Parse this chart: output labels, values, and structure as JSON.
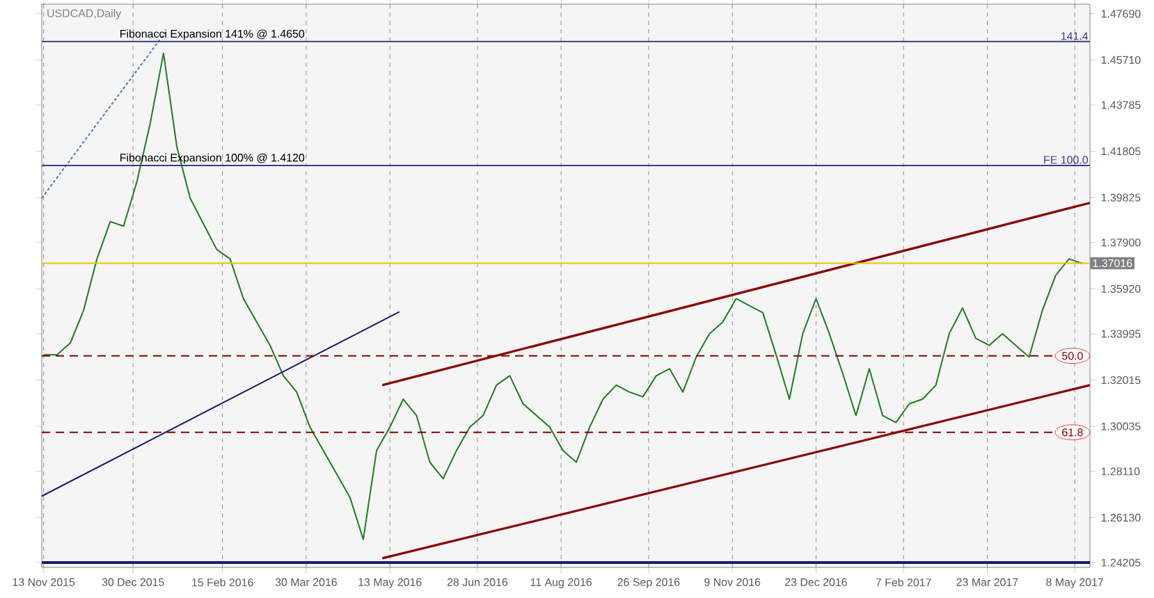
{
  "chart_data": {
    "type": "line",
    "title": "USDCAD,Daily",
    "xlim": [
      "2015-11-12",
      "2017-05-16"
    ],
    "xticks": [
      {
        "value": "2015-11-13",
        "label": "13 Nov 2015"
      },
      {
        "value": "2015-12-30",
        "label": "30 Dec 2015"
      },
      {
        "value": "2016-02-15",
        "label": "15 Feb 2016"
      },
      {
        "value": "2016-03-30",
        "label": "30 Mar 2016"
      },
      {
        "value": "2016-05-13",
        "label": "13 May 2016"
      },
      {
        "value": "2016-06-28",
        "label": "28 Jun 2016"
      },
      {
        "value": "2016-08-11",
        "label": "11 Aug 2016"
      },
      {
        "value": "2016-09-26",
        "label": "26 Sep 2016"
      },
      {
        "value": "2016-11-09",
        "label": "9 Nov 2016"
      },
      {
        "value": "2016-12-23",
        "label": "23 Dec 2016"
      },
      {
        "value": "2017-02-07",
        "label": "7 Feb 2017"
      },
      {
        "value": "2017-03-23",
        "label": "23 Mar 2017"
      },
      {
        "value": "2017-05-08",
        "label": "8 May 2017"
      }
    ],
    "ylim": [
      1.24,
      1.481
    ],
    "yticks": [
      {
        "value": 1.24205,
        "label": "1.24205"
      },
      {
        "value": 1.2613,
        "label": "1.26130"
      },
      {
        "value": 1.2811,
        "label": "1.28110"
      },
      {
        "value": 1.30035,
        "label": "1.30035"
      },
      {
        "value": 1.32015,
        "label": "1.32015"
      },
      {
        "value": 1.33995,
        "label": "1.33995"
      },
      {
        "value": 1.3592,
        "label": "1.35920"
      },
      {
        "value": 1.379,
        "label": "1.37900"
      },
      {
        "value": 1.39825,
        "label": "1.39825"
      },
      {
        "value": 1.41805,
        "label": "1.41805"
      },
      {
        "value": 1.43785,
        "label": "1.43785"
      },
      {
        "value": 1.4571,
        "label": "1.45710"
      },
      {
        "value": 1.4769,
        "label": "1.47690"
      }
    ],
    "grid": "x",
    "series": [
      {
        "color": "#1f7a1f",
        "x": [
          "2015-11-13",
          "2015-11-20",
          "2015-11-27",
          "2015-12-04",
          "2015-12-11",
          "2015-12-18",
          "2015-12-25",
          "2016-01-01",
          "2016-01-08",
          "2016-01-15",
          "2016-01-22",
          "2016-01-29",
          "2016-02-05",
          "2016-02-12",
          "2016-02-19",
          "2016-02-26",
          "2016-03-04",
          "2016-03-11",
          "2016-03-18",
          "2016-03-25",
          "2016-04-01",
          "2016-04-08",
          "2016-04-15",
          "2016-04-22",
          "2016-04-29",
          "2016-05-06",
          "2016-05-13",
          "2016-05-20",
          "2016-05-27",
          "2016-06-03",
          "2016-06-10",
          "2016-06-17",
          "2016-06-24",
          "2016-07-01",
          "2016-07-08",
          "2016-07-15",
          "2016-07-22",
          "2016-07-29",
          "2016-08-05",
          "2016-08-12",
          "2016-08-19",
          "2016-08-26",
          "2016-09-02",
          "2016-09-09",
          "2016-09-16",
          "2016-09-23",
          "2016-09-30",
          "2016-10-07",
          "2016-10-14",
          "2016-10-21",
          "2016-10-28",
          "2016-11-04",
          "2016-11-11",
          "2016-11-18",
          "2016-11-25",
          "2016-12-02",
          "2016-12-09",
          "2016-12-16",
          "2016-12-23",
          "2016-12-30",
          "2017-01-06",
          "2017-01-13",
          "2017-01-20",
          "2017-01-27",
          "2017-02-03",
          "2017-02-10",
          "2017-02-17",
          "2017-02-24",
          "2017-03-03",
          "2017-03-10",
          "2017-03-17",
          "2017-03-24",
          "2017-03-31",
          "2017-04-07",
          "2017-04-14",
          "2017-04-21",
          "2017-04-28",
          "2017-05-05",
          "2017-05-12"
        ],
        "values": [
          1.331,
          1.331,
          1.336,
          1.35,
          1.372,
          1.388,
          1.386,
          1.405,
          1.43,
          1.46,
          1.42,
          1.398,
          1.387,
          1.376,
          1.372,
          1.355,
          1.345,
          1.335,
          1.322,
          1.315,
          1.3,
          1.29,
          1.28,
          1.27,
          1.252,
          1.29,
          1.3,
          1.312,
          1.305,
          1.285,
          1.278,
          1.29,
          1.3,
          1.305,
          1.318,
          1.322,
          1.31,
          1.305,
          1.3,
          1.29,
          1.285,
          1.3,
          1.312,
          1.318,
          1.315,
          1.313,
          1.322,
          1.325,
          1.315,
          1.33,
          1.34,
          1.345,
          1.355,
          1.352,
          1.349,
          1.331,
          1.312,
          1.34,
          1.355,
          1.34,
          1.323,
          1.305,
          1.325,
          1.305,
          1.302,
          1.31,
          1.312,
          1.318,
          1.34,
          1.351,
          1.338,
          1.335,
          1.34,
          1.335,
          1.33,
          1.35,
          1.365,
          1.372,
          1.37
        ]
      },
      {
        "type": "line",
        "color": "#8b0000",
        "x": [
          "2016-05-09",
          "2017-05-16"
        ],
        "values": [
          1.318,
          1.396
        ]
      },
      {
        "type": "line",
        "color": "#8b0000",
        "x": [
          "2016-05-09",
          "2017-05-16"
        ],
        "values": [
          1.2439,
          1.318
        ]
      },
      {
        "type": "line",
        "color": "#1a1a6e",
        "x": [
          "2015-11-12",
          "2016-05-18"
        ],
        "values": [
          1.2705,
          1.3494
        ]
      },
      {
        "type": "line",
        "color": "#4a7ab0",
        "line_style": "dotted",
        "x": [
          "2015-11-12",
          "2016-01-16"
        ],
        "values": [
          1.398,
          1.469
        ]
      }
    ],
    "ref_lines": [
      {
        "axis": "y",
        "value": 1.465,
        "label": "Fibonacci Expansion 141% @ 1.4650",
        "color": "#3a3a8c"
      },
      {
        "axis": "y",
        "value": 1.412,
        "label": "Fibonacci Expansion 100% @ 1.4120",
        "color": "#3a3a8c"
      },
      {
        "axis": "y",
        "value": 1.3305,
        "color": "#8b0000",
        "line_style": "dashed"
      },
      {
        "axis": "y",
        "value": 1.2978,
        "color": "#8b0000",
        "line_style": "dashed"
      },
      {
        "axis": "y",
        "value": 1.37016,
        "color": "#f0c000"
      },
      {
        "axis": "y",
        "value": 1.24205,
        "color": "#1a1a6e"
      }
    ],
    "annotations": [
      {
        "text": "141.4",
        "x": "2017-05-16",
        "y": 1.465
      },
      {
        "text": "FE 100.0",
        "x": "2017-05-16",
        "y": 1.412
      },
      {
        "text": "1.37016",
        "x": "2017-05-16",
        "y": 1.37016
      },
      "50.0",
      "61.8"
    ]
  }
}
